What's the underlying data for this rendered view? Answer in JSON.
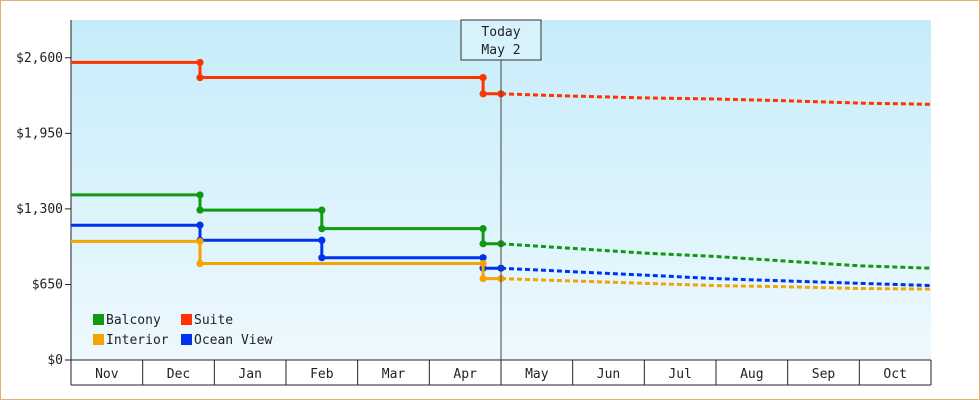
{
  "chart_data": {
    "type": "line",
    "step": true,
    "x_axis": {
      "months": [
        "Nov",
        "Dec",
        "Jan",
        "Feb",
        "Mar",
        "Apr",
        "May",
        "Jun",
        "Jul",
        "Aug",
        "Sep",
        "Oct"
      ]
    },
    "y_axis": {
      "ylim": [
        0,
        2925
      ],
      "ticks": [
        0,
        650,
        1300,
        1950,
        2600
      ],
      "tick_labels": [
        "$0",
        "$650",
        "$1,300",
        "$1,950",
        "$2,600"
      ]
    },
    "today": {
      "line1": "Today",
      "line2": "May 2",
      "x": 6.0
    },
    "series": [
      {
        "name": "Suite",
        "color": "#ff3300",
        "history": [
          [
            0,
            2560
          ],
          [
            1.8,
            2560
          ],
          [
            1.8,
            2430
          ],
          [
            5.75,
            2430
          ],
          [
            5.75,
            2290
          ],
          [
            6.0,
            2290
          ]
        ],
        "forecast": [
          [
            6.0,
            2290
          ],
          [
            7.0,
            2270
          ],
          [
            8.0,
            2255
          ],
          [
            9.0,
            2245
          ],
          [
            10.0,
            2230
          ],
          [
            11.0,
            2210
          ],
          [
            12.0,
            2200
          ]
        ]
      },
      {
        "name": "Balcony",
        "color": "#119911",
        "history": [
          [
            0,
            1420
          ],
          [
            1.8,
            1420
          ],
          [
            1.8,
            1290
          ],
          [
            3.5,
            1290
          ],
          [
            3.5,
            1130
          ],
          [
            5.75,
            1130
          ],
          [
            5.75,
            1000
          ],
          [
            6.0,
            1000
          ]
        ],
        "forecast": [
          [
            6.0,
            1000
          ],
          [
            7.0,
            960
          ],
          [
            8.0,
            920
          ],
          [
            9.0,
            890
          ],
          [
            10.0,
            850
          ],
          [
            11.0,
            810
          ],
          [
            12.0,
            790
          ]
        ]
      },
      {
        "name": "Ocean View",
        "color": "#0033ee",
        "history": [
          [
            0,
            1160
          ],
          [
            1.8,
            1160
          ],
          [
            1.8,
            1030
          ],
          [
            3.5,
            1030
          ],
          [
            3.5,
            880
          ],
          [
            5.75,
            880
          ],
          [
            5.75,
            790
          ],
          [
            6.0,
            790
          ]
        ],
        "forecast": [
          [
            6.0,
            790
          ],
          [
            7.0,
            760
          ],
          [
            8.0,
            730
          ],
          [
            9.0,
            700
          ],
          [
            10.0,
            680
          ],
          [
            11.0,
            660
          ],
          [
            12.0,
            640
          ]
        ]
      },
      {
        "name": "Interior",
        "color": "#f5a300",
        "history": [
          [
            0,
            1020
          ],
          [
            1.8,
            1020
          ],
          [
            1.8,
            830
          ],
          [
            5.75,
            830
          ],
          [
            5.75,
            700
          ],
          [
            6.0,
            700
          ]
        ],
        "forecast": [
          [
            6.0,
            700
          ],
          [
            7.0,
            680
          ],
          [
            8.0,
            660
          ],
          [
            9.0,
            640
          ],
          [
            10.0,
            630
          ],
          [
            11.0,
            615
          ],
          [
            12.0,
            610
          ]
        ]
      }
    ],
    "legend": [
      {
        "name": "Balcony",
        "color": "#119911"
      },
      {
        "name": "Suite",
        "color": "#ff3300"
      },
      {
        "name": "Interior",
        "color": "#f5a300"
      },
      {
        "name": "Ocean View",
        "color": "#0033ee"
      }
    ],
    "legend_position": "bottom-left",
    "grid": false
  }
}
